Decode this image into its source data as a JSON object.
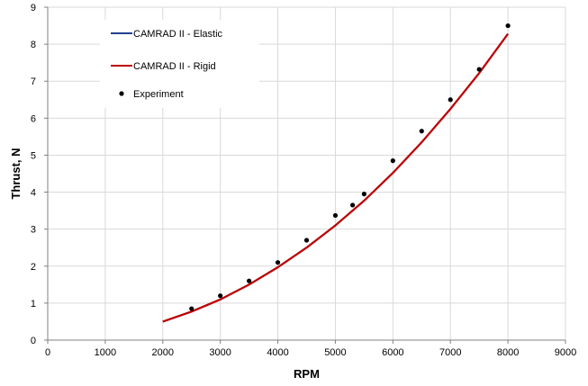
{
  "chart_data": {
    "type": "line",
    "title": "",
    "xlabel": "RPM",
    "ylabel": "Thrust, N",
    "xlim": [
      0,
      9000
    ],
    "ylim": [
      0,
      9
    ],
    "xticks": [
      0,
      1000,
      2000,
      3000,
      4000,
      5000,
      6000,
      7000,
      8000,
      9000
    ],
    "yticks": [
      0,
      1,
      2,
      3,
      4,
      5,
      6,
      7,
      8,
      9
    ],
    "grid": true,
    "legend_position": "top-left",
    "series": [
      {
        "name": "CAMRAD II - Elastic",
        "kind": "line",
        "color": "#1f3f8f",
        "x": [
          2000,
          2500,
          3000,
          3500,
          4000,
          4500,
          5000,
          5500,
          6000,
          6500,
          7000,
          7500,
          8000
        ],
        "y": [
          0.5,
          0.77,
          1.1,
          1.5,
          1.97,
          2.5,
          3.1,
          3.77,
          4.52,
          5.35,
          6.25,
          7.22,
          8.28
        ]
      },
      {
        "name": "CAMRAD II - Rigid",
        "kind": "line",
        "color": "#c00000",
        "x": [
          2000,
          2500,
          3000,
          3500,
          4000,
          4500,
          5000,
          5500,
          6000,
          6500,
          7000,
          7500,
          8000
        ],
        "y": [
          0.5,
          0.77,
          1.1,
          1.5,
          1.97,
          2.5,
          3.1,
          3.77,
          4.52,
          5.35,
          6.25,
          7.22,
          8.28
        ]
      },
      {
        "name": "Experiment",
        "kind": "scatter",
        "color": "#000000",
        "x": [
          2500,
          3000,
          3500,
          4000,
          4500,
          5000,
          5300,
          5500,
          6000,
          6500,
          7000,
          7500,
          8000
        ],
        "y": [
          0.85,
          1.2,
          1.6,
          2.1,
          2.7,
          3.37,
          3.65,
          3.95,
          4.85,
          5.65,
          6.5,
          7.32,
          8.5
        ]
      }
    ]
  }
}
